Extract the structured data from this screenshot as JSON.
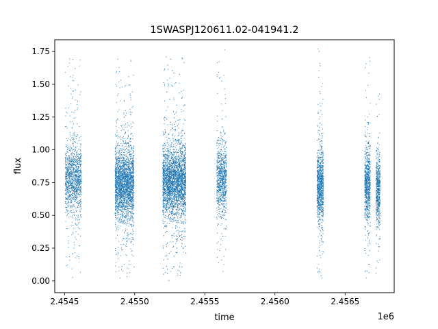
{
  "chart_data": {
    "type": "scatter",
    "title": "1SWASPJ120611.02-041941.2",
    "xlabel": "time",
    "ylabel": "flux",
    "x_offset_label": "1e6",
    "xlim": [
      2454430,
      2456850
    ],
    "ylim": [
      -0.09,
      1.84
    ],
    "xticks": [
      2454500,
      2455000,
      2455500,
      2456000,
      2456500
    ],
    "xtick_labels": [
      "2.4545",
      "2.4550",
      "2.4555",
      "2.4560",
      "2.4565"
    ],
    "yticks": [
      0.0,
      0.25,
      0.5,
      0.75,
      1.0,
      1.25,
      1.5,
      1.75
    ],
    "ytick_labels": [
      "0.00",
      "0.25",
      "0.50",
      "0.75",
      "1.00",
      "1.25",
      "1.50",
      "1.75"
    ],
    "grid": false,
    "marker_color": "#1f77b4",
    "series": [
      {
        "clusters": [
          {
            "x_start": 2454505,
            "x_end": 2454620,
            "flux_center": 0.78,
            "flux_min": 0.01,
            "flux_max": 1.75,
            "approx_points": 1300
          },
          {
            "x_start": 2454860,
            "x_end": 2454995,
            "flux_center": 0.74,
            "flux_min": 0.02,
            "flux_max": 1.7,
            "approx_points": 2600
          },
          {
            "x_start": 2455200,
            "x_end": 2455365,
            "flux_center": 0.76,
            "flux_min": 0.0,
            "flux_max": 1.72,
            "approx_points": 3800
          },
          {
            "x_start": 2455585,
            "x_end": 2455655,
            "flux_center": 0.78,
            "flux_min": 0.05,
            "flux_max": 1.78,
            "approx_points": 900
          },
          {
            "x_start": 2456300,
            "x_end": 2456345,
            "flux_center": 0.72,
            "flux_min": 0.0,
            "flux_max": 1.78,
            "approx_points": 1000
          },
          {
            "x_start": 2456640,
            "x_end": 2456680,
            "flux_center": 0.74,
            "flux_min": 0.02,
            "flux_max": 1.73,
            "approx_points": 800
          },
          {
            "x_start": 2456720,
            "x_end": 2456750,
            "flux_center": 0.7,
            "flux_min": 0.05,
            "flux_max": 1.44,
            "approx_points": 600
          }
        ]
      }
    ]
  }
}
